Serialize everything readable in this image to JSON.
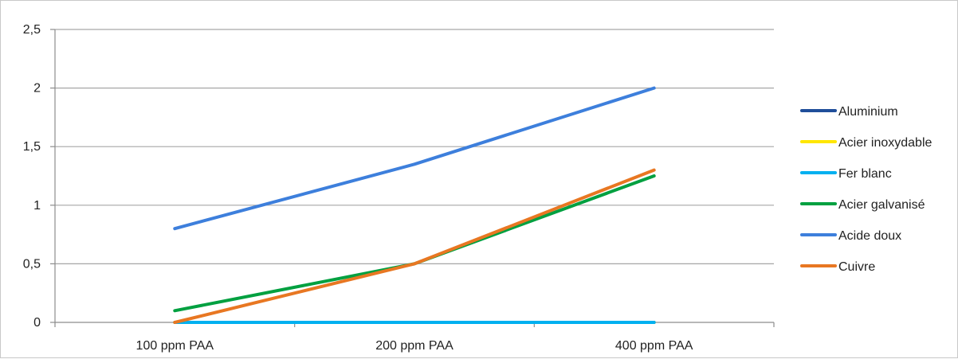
{
  "chart_data": {
    "type": "line",
    "categories": [
      "100 ppm PAA",
      "200 ppm PAA",
      "400 ppm PAA"
    ],
    "ylim": [
      0,
      2.5
    ],
    "yticks": [
      "0",
      "0,5",
      "1",
      "1,5",
      "2",
      "2,5"
    ],
    "ytick_values": [
      0,
      0.5,
      1,
      1.5,
      2,
      2.5
    ],
    "grid": true,
    "legend_position": "right",
    "series": [
      {
        "name": "Aluminium",
        "color": "#1f4e9a",
        "values": [
          0,
          0,
          0
        ]
      },
      {
        "name": "Acier inoxydable",
        "color": "#ffe600",
        "values": [
          0,
          0,
          0
        ]
      },
      {
        "name": "Fer blanc",
        "color": "#00b0f0",
        "values": [
          0,
          0,
          0
        ]
      },
      {
        "name": "Acier galvanisé",
        "color": "#00a040",
        "values": [
          0.1,
          0.5,
          1.25
        ]
      },
      {
        "name": "Acide doux",
        "color": "#3d7fdc",
        "values": [
          0.8,
          1.35,
          2.0
        ]
      },
      {
        "name": "Cuivre",
        "color": "#e87722",
        "values": [
          0,
          0.5,
          1.3
        ]
      }
    ]
  }
}
